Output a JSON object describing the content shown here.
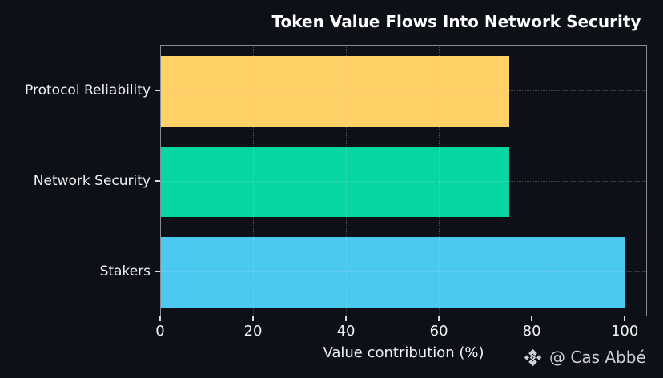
{
  "chart_data": {
    "type": "bar",
    "orientation": "horizontal",
    "title": "Token Value Flows Into Network Security",
    "categories": [
      "Protocol Reliability",
      "Network Security",
      "Stakers"
    ],
    "values": [
      75,
      75,
      100
    ],
    "bar_colors": [
      "#ffd166",
      "#06d6a0",
      "#4cc9f0"
    ],
    "xlabel": "Value contribution (%)",
    "x_ticks": [
      0,
      20,
      40,
      60,
      80,
      100
    ],
    "xlim": [
      0,
      104.8
    ],
    "grid": true,
    "legend": false,
    "background_color": "#0d1016",
    "spine_color": "#848c99",
    "text_color": "#f0f2f5"
  },
  "watermark": {
    "icon": "binance-logo-icon",
    "text": "@ Cas Abbé",
    "color": "#ccd1d9"
  }
}
